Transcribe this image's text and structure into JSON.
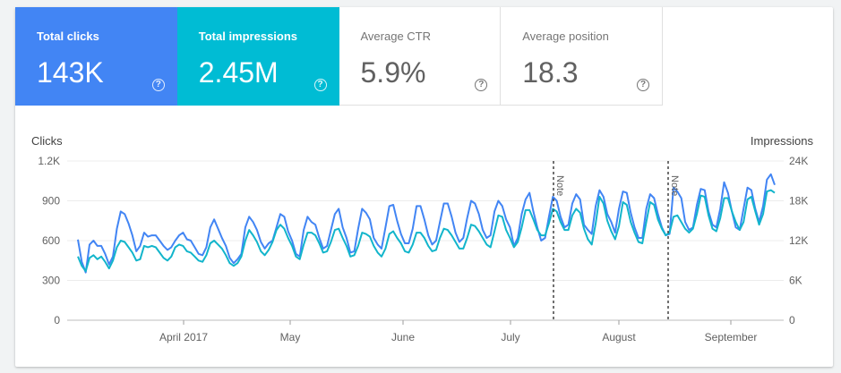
{
  "metrics": [
    {
      "id": "clicks",
      "label": "Total clicks",
      "value": "143K",
      "selected": true,
      "color": "#4285f4"
    },
    {
      "id": "impressions",
      "label": "Total impressions",
      "value": "2.45M",
      "selected": true,
      "color": "#00bcd4"
    },
    {
      "id": "ctr",
      "label": "Average CTR",
      "value": "5.9%",
      "selected": false
    },
    {
      "id": "position",
      "label": "Average position",
      "value": "18.3",
      "selected": false
    }
  ],
  "help_glyph": "?",
  "chart_data": {
    "type": "line",
    "x_labels": [
      "April 2017",
      "May",
      "June",
      "July",
      "August",
      "September"
    ],
    "y_left": {
      "title": "Clicks",
      "ticks": [
        "1.2K",
        "900",
        "600",
        "300",
        "0"
      ],
      "range": [
        0,
        1200
      ]
    },
    "y_right": {
      "title": "Impressions",
      "ticks": [
        "24K",
        "18K",
        "12K",
        "6K",
        "0"
      ],
      "range": [
        0,
        24000
      ]
    },
    "grid": true,
    "series": [
      {
        "axis": "left",
        "color": "#4285f4",
        "values": [
          608,
          440,
          360,
          570,
          600,
          560,
          560,
          500,
          420,
          480,
          690,
          820,
          800,
          730,
          640,
          520,
          560,
          660,
          630,
          640,
          640,
          600,
          560,
          530,
          550,
          600,
          640,
          660,
          610,
          600,
          550,
          500,
          490,
          550,
          700,
          760,
          690,
          620,
          560,
          470,
          430,
          460,
          500,
          700,
          780,
          740,
          680,
          590,
          540,
          580,
          600,
          700,
          800,
          780,
          670,
          600,
          500,
          480,
          680,
          780,
          740,
          720,
          620,
          540,
          560,
          680,
          800,
          840,
          700,
          620,
          510,
          520,
          690,
          840,
          810,
          760,
          620,
          570,
          540,
          700,
          860,
          870,
          750,
          650,
          580,
          580,
          690,
          860,
          860,
          760,
          640,
          570,
          600,
          740,
          880,
          880,
          780,
          660,
          590,
          620,
          770,
          900,
          880,
          800,
          680,
          620,
          640,
          820,
          900,
          860,
          760,
          700,
          560,
          620,
          800,
          910,
          960,
          820,
          700,
          600,
          620,
          780,
          930,
          900,
          780,
          700,
          720,
          880,
          950,
          910,
          720,
          680,
          650,
          860,
          980,
          930,
          800,
          740,
          660,
          840,
          970,
          960,
          810,
          700,
          620,
          620,
          840,
          950,
          920,
          800,
          700,
          640,
          650,
          1000,
          970,
          920,
          740,
          680,
          700,
          870,
          990,
          980,
          820,
          720,
          700,
          840,
          1040,
          960,
          820,
          700,
          680,
          840,
          1000,
          980,
          840,
          740,
          860,
          1060,
          1100,
          1020
        ]
      },
      {
        "axis": "right",
        "color": "#12b5cb",
        "values": [
          9600,
          8200,
          7400,
          9400,
          9800,
          9200,
          9600,
          8800,
          7800,
          9000,
          11000,
          12000,
          11800,
          11000,
          10200,
          9000,
          9200,
          11200,
          11000,
          11200,
          11000,
          10200,
          9400,
          9000,
          9600,
          11000,
          11400,
          11200,
          10400,
          10200,
          9600,
          9000,
          8800,
          9800,
          11600,
          12000,
          11400,
          10800,
          9800,
          8600,
          8200,
          8600,
          9600,
          12000,
          13600,
          12800,
          11800,
          10400,
          9800,
          10600,
          11800,
          13600,
          14400,
          13800,
          12400,
          11200,
          9600,
          9200,
          11400,
          13200,
          13200,
          12800,
          11600,
          10200,
          10400,
          11800,
          13600,
          13800,
          12400,
          11200,
          9600,
          9800,
          11200,
          13200,
          13000,
          12600,
          11200,
          10200,
          9600,
          10800,
          13000,
          13400,
          12400,
          11600,
          10400,
          10200,
          11400,
          13200,
          13200,
          12400,
          11200,
          10400,
          10600,
          12400,
          13800,
          13600,
          12800,
          11800,
          10800,
          10800,
          12400,
          14400,
          14200,
          13400,
          12400,
          11400,
          11000,
          13400,
          15800,
          15600,
          13600,
          12400,
          11000,
          11800,
          14000,
          16600,
          16600,
          15200,
          13600,
          12800,
          12800,
          14600,
          16800,
          16400,
          14800,
          13600,
          13600,
          15800,
          16800,
          16200,
          13800,
          12200,
          11400,
          14600,
          18600,
          17600,
          15000,
          13400,
          12200,
          14200,
          17800,
          17400,
          14800,
          13200,
          11800,
          11600,
          14800,
          17800,
          17400,
          15200,
          13800,
          12800,
          13200,
          15600,
          15800,
          14800,
          13800,
          13200,
          13800,
          16000,
          18800,
          18600,
          15800,
          13800,
          13400,
          15400,
          18400,
          18400,
          16400,
          14800,
          13600,
          14800,
          18200,
          18600,
          16400,
          14400,
          16000,
          19400,
          19600,
          19200
        ]
      }
    ],
    "annotations": [
      {
        "label": "Note"
      },
      {
        "label": "Note"
      }
    ]
  }
}
